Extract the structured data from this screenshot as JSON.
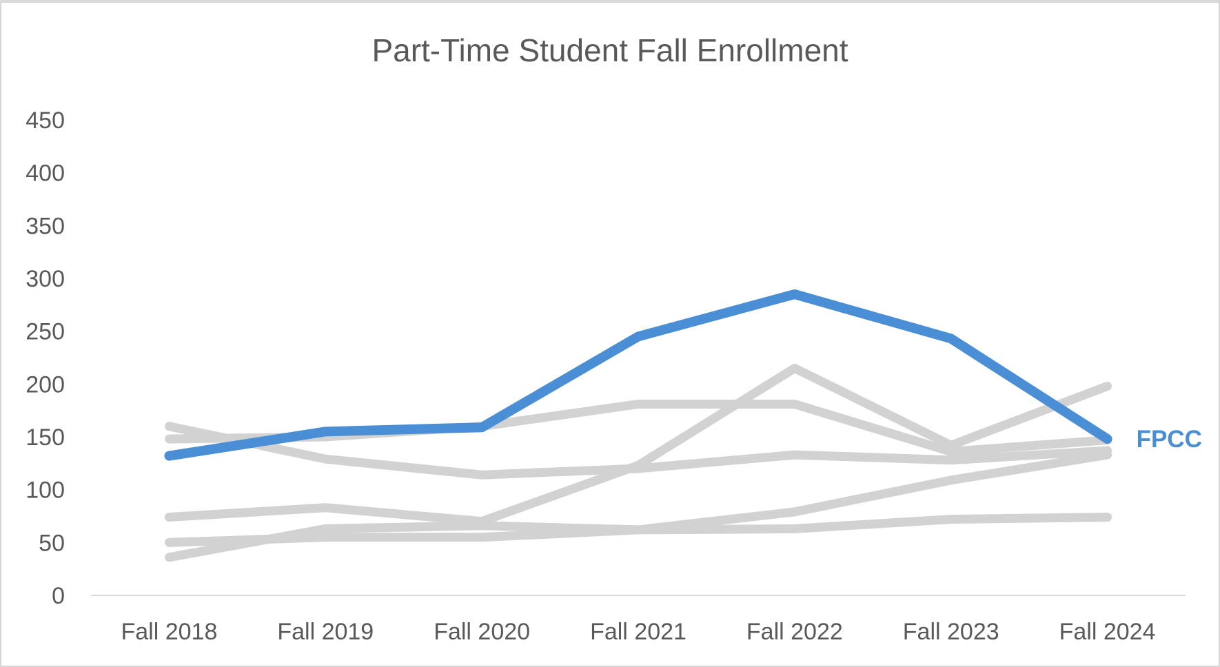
{
  "page": {
    "background": "#ffffff",
    "border_color": "#d6d6d6"
  },
  "chart_data": {
    "type": "line",
    "title": "Part-Time Student Fall Enrollment",
    "title_color": "#595959",
    "categories": [
      "Fall 2018",
      "Fall 2019",
      "Fall 2020",
      "Fall 2021",
      "Fall 2022",
      "Fall 2023",
      "Fall 2024"
    ],
    "xlabel": "",
    "ylabel": "",
    "y_axis": {
      "min": 0,
      "max": 450,
      "step": 50,
      "tick_labels": [
        "0",
        "50",
        "100",
        "150",
        "200",
        "250",
        "300",
        "350",
        "400",
        "450"
      ]
    },
    "grid": false,
    "legend_position": "none",
    "axis_label_color": "#595959",
    "axis_line_color": "#d9d9d9",
    "highlight_color": "#4a8ed5",
    "gray_series_color": "#d2d2d2",
    "series": [
      {
        "name": "",
        "color": "#d2d2d2",
        "values": [
          160,
          129,
          114,
          120,
          133,
          128,
          137
        ]
      },
      {
        "name": "",
        "color": "#d2d2d2",
        "values": [
          148,
          150,
          160,
          181,
          181,
          136,
          147
        ]
      },
      {
        "name": "",
        "color": "#d2d2d2",
        "values": [
          74,
          83,
          70,
          123,
          215,
          142,
          198
        ]
      },
      {
        "name": "",
        "color": "#d2d2d2",
        "values": [
          50,
          55,
          55,
          62,
          79,
          109,
          133
        ]
      },
      {
        "name": "",
        "color": "#d2d2d2",
        "values": [
          36,
          63,
          66,
          62,
          63,
          72,
          74
        ]
      },
      {
        "name": "FPCC",
        "color": "#4a8ed5",
        "values": [
          132,
          155,
          159,
          245,
          285,
          243,
          148
        ],
        "end_label": "FPCC"
      }
    ]
  }
}
